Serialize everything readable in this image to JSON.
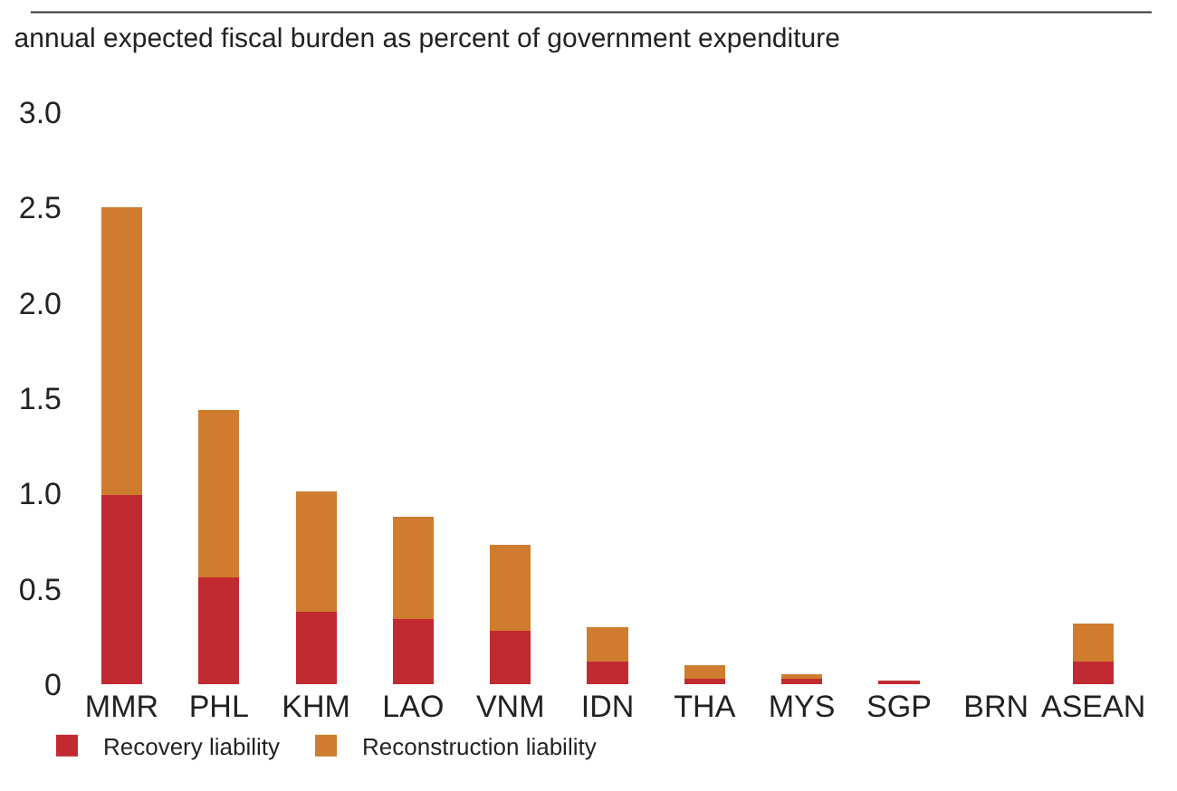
{
  "chart_data": {
    "type": "bar",
    "stacked": true,
    "title": "annual expected fiscal burden as percent of government expenditure",
    "categories": [
      "MMR",
      "PHL",
      "KHM",
      "LAO",
      "VNM",
      "IDN",
      "THA",
      "MYS",
      "SGP",
      "BRN",
      "ASEAN"
    ],
    "series": [
      {
        "name": "Recovery liability",
        "color": "#c22a31",
        "values": [
          0.99,
          0.56,
          0.38,
          0.34,
          0.28,
          0.12,
          0.03,
          0.03,
          0.02,
          null,
          0.12
        ]
      },
      {
        "name": "Reconstruction liability",
        "color": "#cf7c2e",
        "values": [
          1.51,
          0.88,
          0.63,
          0.54,
          0.45,
          0.18,
          0.07,
          0.02,
          null,
          null,
          0.2
        ]
      }
    ],
    "ylim": [
      0,
      3.0
    ],
    "yticks": [
      0,
      0.5,
      {
        "value": 1,
        "label": "1.0"
      },
      1.5,
      {
        "value": 2,
        "label": "2.0"
      },
      2.5,
      {
        "value": 3,
        "label": "3.0"
      }
    ],
    "legend": "bottom left"
  }
}
